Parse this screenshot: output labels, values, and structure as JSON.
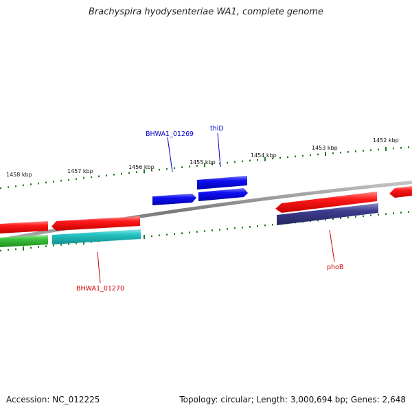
{
  "title": "Brachyspira hyodysenteriae WA1, complete genome",
  "footer": {
    "accession": "Accession: NC_012225",
    "topology": "Topology: circular; Length: 3,000,694 bp; Genes: 2,648"
  },
  "scale_labels": [
    "1458 kbp",
    "1457 kbp",
    "1456 kbp",
    "1455 kbp",
    "1454 kbp",
    "1453 kbp",
    "1452 kbp"
  ],
  "gene_labels": {
    "BHWA1_01269": "BHWA1_01269",
    "thiD": "thiD",
    "BHWA1_01270": "BHWA1_01270",
    "phoB": "phoB"
  },
  "colors": {
    "backbone": "#8a8a8a",
    "tick": "#1d7a1d",
    "red_gene": "#ee1111",
    "blue_gene": "#1111ee",
    "green_gene": "#33bb33",
    "cyan_gene": "#22bbbb",
    "navy_gene": "#3a3a88",
    "label_blue": "#0000cc",
    "label_red": "#cc0000"
  }
}
